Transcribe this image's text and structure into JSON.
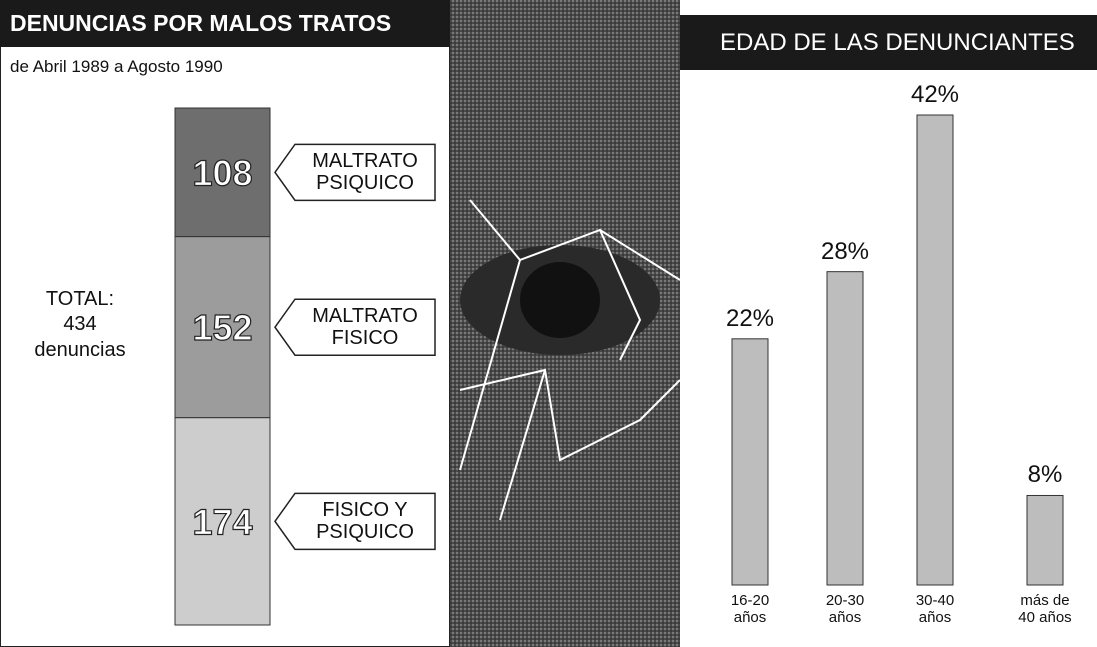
{
  "chart_data": [
    {
      "type": "stacked-bar",
      "title": "DENUNCIAS POR MALOS TRATOS",
      "subtitle": "de Abril 1989 a Agosto 1990",
      "total_label": "TOTAL:",
      "total": 434,
      "total_unit": "denuncias",
      "series": [
        {
          "name": "MALTRATO PSIQUICO",
          "color": "#6e6e6e",
          "values": [
            108
          ]
        },
        {
          "name": "MALTRATO FISICO",
          "color": "#9c9c9c",
          "values": [
            152
          ]
        },
        {
          "name": "FISICO Y PSIQUICO",
          "color": "#cdcdcd",
          "values": [
            174
          ]
        }
      ]
    },
    {
      "type": "bar",
      "title": "EDAD DE LAS DENUNCIANTES",
      "categories": [
        "16-20 años",
        "20-30 años",
        "30-40 años",
        "más de 40 años"
      ],
      "values": [
        22,
        28,
        42,
        8
      ],
      "value_labels": [
        "22%",
        "28%",
        "42%",
        "8%"
      ],
      "color": "#bdbdbd"
    }
  ]
}
